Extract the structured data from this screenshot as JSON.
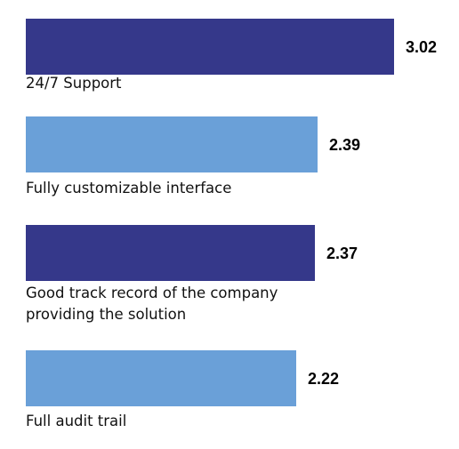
{
  "chart_data": {
    "type": "bar",
    "orientation": "horizontal",
    "categories": [
      "24/7 Support",
      "Fully customizable interface",
      "Good track record of the company\nproviding the solution",
      "Full audit trail"
    ],
    "values": [
      3.02,
      2.39,
      2.37,
      2.22
    ],
    "value_labels": [
      "3.02",
      "2.39",
      "2.37",
      "2.22"
    ],
    "bar_colors": [
      "#35388a",
      "#6aa0d8",
      "#35388a",
      "#6aa0d8"
    ],
    "xlim": [
      0,
      3.02
    ],
    "grid": false,
    "legend": "none"
  }
}
